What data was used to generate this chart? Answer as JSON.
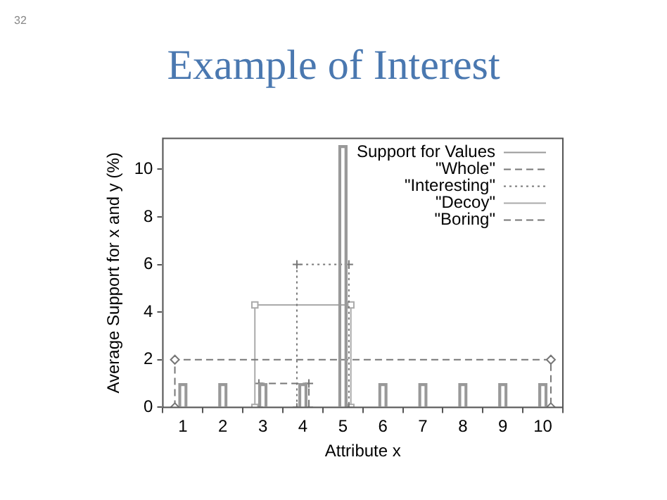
{
  "chart_data": {
    "type": "bar",
    "title": "Example of Interest",
    "annotations": [
      "32"
    ],
    "xlabel": "Attribute x",
    "ylabel": "Average Support for x and y (%)",
    "xlim": [
      0.5,
      10.5
    ],
    "xticks": [
      1,
      2,
      3,
      4,
      5,
      6,
      7,
      8,
      9,
      10
    ],
    "ylim": [
      0,
      11.3
    ],
    "yticks": [
      0,
      2,
      4,
      6,
      8,
      10
    ],
    "grid": false,
    "legend": "top right",
    "series": [
      {
        "name": "Support for Values",
        "color": "#999999",
        "x": [
          1,
          2,
          3,
          4,
          5,
          6,
          7,
          8,
          9,
          10
        ],
        "values": [
          1,
          1,
          1,
          1,
          11,
          1,
          1,
          1,
          1,
          1
        ]
      },
      {
        "name": "\"Whole\"",
        "type": "line",
        "color": "#777777",
        "marker": "diamond",
        "line_style": "dashed",
        "x": [
          0.8,
          0.8,
          10.2,
          10.2
        ],
        "values": [
          0,
          2,
          2,
          0
        ]
      },
      {
        "name": "\"Interesting\"",
        "type": "line",
        "color": "#777777",
        "marker": "cross",
        "line_style": "dotted",
        "x": [
          3.85,
          3.85,
          5.15,
          5.15
        ],
        "values": [
          0,
          6,
          6,
          0
        ]
      },
      {
        "name": "\"Decoy\"",
        "type": "line",
        "color": "#aaaaaa",
        "marker": "square",
        "line_style": "solid",
        "x": [
          2.8,
          2.8,
          5.2,
          5.2
        ],
        "values": [
          0,
          4.3,
          4.3,
          0
        ]
      },
      {
        "name": "\"Boring\"",
        "type": "line",
        "color": "#777777",
        "marker": "cross",
        "line_style": "dashed",
        "x": [
          2.9,
          2.9,
          4.15,
          4.15
        ],
        "values": [
          0,
          1,
          1,
          0
        ]
      }
    ]
  }
}
